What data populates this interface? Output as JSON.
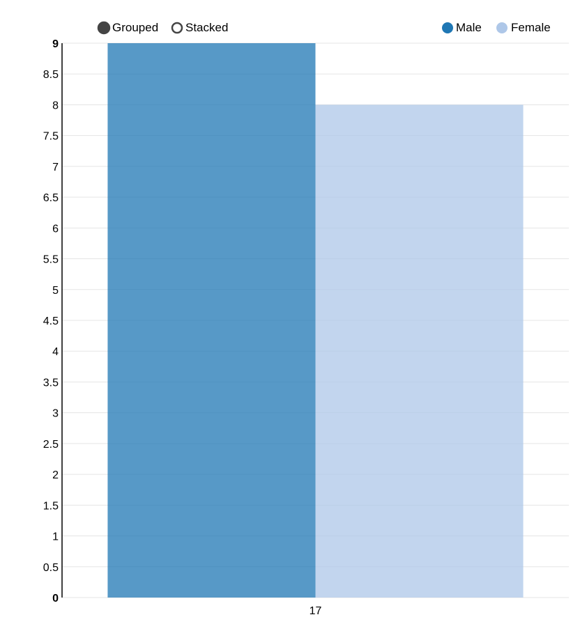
{
  "controls": {
    "grouped_label": "Grouped",
    "stacked_label": "Stacked",
    "selected": "grouped",
    "control_color": "#444444"
  },
  "chart_data": {
    "type": "bar",
    "mode": "grouped",
    "categories": [
      "17"
    ],
    "series": [
      {
        "name": "Male",
        "values": [
          9
        ],
        "color": "#1f77b4"
      },
      {
        "name": "Female",
        "values": [
          8
        ],
        "color": "#aec7e8"
      }
    ],
    "ylim": [
      0,
      9
    ],
    "yticks": [
      0,
      0.5,
      1,
      1.5,
      2,
      2.5,
      3,
      3.5,
      4,
      4.5,
      5,
      5.5,
      6,
      6.5,
      7,
      7.5,
      8,
      8.5,
      9
    ],
    "grid": true,
    "legend_position": "top-right",
    "title": "",
    "xlabel": "",
    "ylabel": ""
  }
}
